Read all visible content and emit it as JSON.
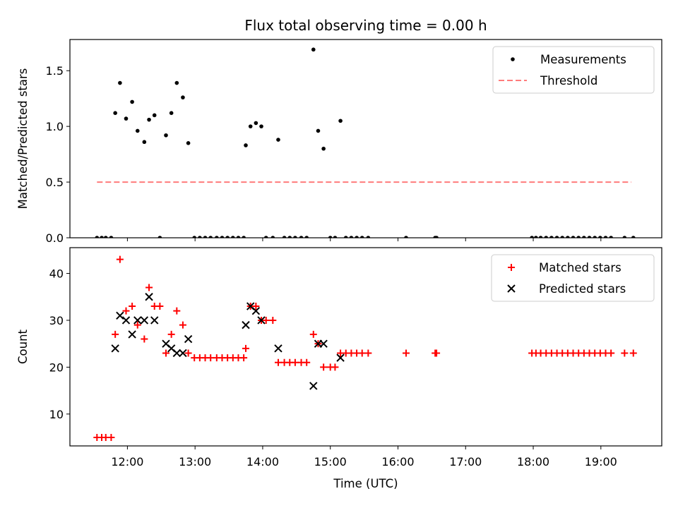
{
  "chart_data": [
    {
      "type": "scatter",
      "title": "Flux total observing time = 0.00 h",
      "xlabel": "",
      "ylabel": "Matched/Predicted stars",
      "ylim": [
        0,
        1.78
      ],
      "xlim": [
        11.15,
        19.9
      ],
      "xtick_values": [
        12,
        13,
        14,
        15,
        16,
        17,
        18,
        19
      ],
      "yticks": [
        {
          "value": 0.0,
          "label": "0.0"
        },
        {
          "value": 0.5,
          "label": "0.5"
        },
        {
          "value": 1.0,
          "label": "1.0"
        },
        {
          "value": 1.5,
          "label": "1.5"
        }
      ],
      "legend_position": "top-right",
      "series": [
        {
          "name": "Measurements",
          "kind": "dot",
          "color": "#000000",
          "points": [
            [
              11.55,
              0
            ],
            [
              11.62,
              0
            ],
            [
              11.68,
              0
            ],
            [
              11.76,
              0
            ],
            [
              11.82,
              1.12
            ],
            [
              11.89,
              1.39
            ],
            [
              11.98,
              1.07
            ],
            [
              12.07,
              1.22
            ],
            [
              12.15,
              0.96
            ],
            [
              12.25,
              0.86
            ],
            [
              12.32,
              1.06
            ],
            [
              12.4,
              1.1
            ],
            [
              12.57,
              0.92
            ],
            [
              12.65,
              1.12
            ],
            [
              12.73,
              1.39
            ],
            [
              12.82,
              1.26
            ],
            [
              12.9,
              0.85
            ],
            [
              12.48,
              0
            ],
            [
              12.99,
              0
            ],
            [
              13.07,
              0
            ],
            [
              13.15,
              0
            ],
            [
              13.23,
              0
            ],
            [
              13.32,
              0
            ],
            [
              13.4,
              0
            ],
            [
              13.48,
              0
            ],
            [
              13.56,
              0
            ],
            [
              13.64,
              0
            ],
            [
              13.72,
              0
            ],
            [
              13.75,
              0.83
            ],
            [
              13.82,
              1.0
            ],
            [
              13.9,
              1.03
            ],
            [
              13.98,
              1.0
            ],
            [
              14.05,
              0
            ],
            [
              14.15,
              0
            ],
            [
              14.32,
              0
            ],
            [
              14.4,
              0
            ],
            [
              14.48,
              0
            ],
            [
              14.57,
              0
            ],
            [
              14.65,
              0
            ],
            [
              14.23,
              0.88
            ],
            [
              14.75,
              1.69
            ],
            [
              14.82,
              0.96
            ],
            [
              14.9,
              0.8
            ],
            [
              15.15,
              1.05
            ],
            [
              15.0,
              0
            ],
            [
              15.07,
              0
            ],
            [
              15.23,
              0
            ],
            [
              15.31,
              0
            ],
            [
              15.39,
              0
            ],
            [
              15.47,
              0
            ],
            [
              15.56,
              0
            ],
            [
              16.12,
              0
            ],
            [
              16.55,
              0
            ],
            [
              16.57,
              0
            ],
            [
              17.98,
              0
            ],
            [
              18.04,
              0
            ],
            [
              18.11,
              0
            ],
            [
              18.19,
              0
            ],
            [
              18.27,
              0
            ],
            [
              18.35,
              0
            ],
            [
              18.43,
              0
            ],
            [
              18.51,
              0
            ],
            [
              18.59,
              0
            ],
            [
              18.67,
              0
            ],
            [
              18.75,
              0
            ],
            [
              18.83,
              0
            ],
            [
              18.91,
              0
            ],
            [
              18.99,
              0
            ],
            [
              19.07,
              0
            ],
            [
              19.15,
              0
            ],
            [
              19.35,
              0
            ],
            [
              19.48,
              0
            ]
          ]
        },
        {
          "name": "Threshold",
          "kind": "dashed-line",
          "color": "#ff7b7b",
          "points": [
            [
              11.55,
              0.5
            ],
            [
              19.45,
              0.5
            ]
          ]
        }
      ]
    },
    {
      "type": "scatter",
      "title": "",
      "xlabel": "Time (UTC)",
      "ylabel": "Count",
      "ylim": [
        3.2,
        45.5
      ],
      "xlim": [
        11.15,
        19.9
      ],
      "xticks": [
        {
          "value": 12,
          "label": "12:00"
        },
        {
          "value": 13,
          "label": "13:00"
        },
        {
          "value": 14,
          "label": "14:00"
        },
        {
          "value": 15,
          "label": "15:00"
        },
        {
          "value": 16,
          "label": "16:00"
        },
        {
          "value": 17,
          "label": "17:00"
        },
        {
          "value": 18,
          "label": "18:00"
        },
        {
          "value": 19,
          "label": "19:00"
        }
      ],
      "yticks": [
        {
          "value": 10,
          "label": "10"
        },
        {
          "value": 20,
          "label": "20"
        },
        {
          "value": 30,
          "label": "30"
        },
        {
          "value": 40,
          "label": "40"
        }
      ],
      "legend_position": "top-right",
      "series": [
        {
          "name": "Matched stars",
          "kind": "plus",
          "color": "#ff0000",
          "points": [
            [
              11.55,
              5
            ],
            [
              11.62,
              5
            ],
            [
              11.68,
              5
            ],
            [
              11.76,
              5
            ],
            [
              11.82,
              27
            ],
            [
              11.89,
              43
            ],
            [
              11.98,
              32
            ],
            [
              12.07,
              33
            ],
            [
              12.15,
              29
            ],
            [
              12.25,
              26
            ],
            [
              12.32,
              37
            ],
            [
              12.4,
              33
            ],
            [
              12.48,
              33
            ],
            [
              12.57,
              23
            ],
            [
              12.65,
              27
            ],
            [
              12.73,
              32
            ],
            [
              12.82,
              29
            ],
            [
              12.9,
              23
            ],
            [
              12.99,
              22
            ],
            [
              13.07,
              22
            ],
            [
              13.15,
              22
            ],
            [
              13.23,
              22
            ],
            [
              13.32,
              22
            ],
            [
              13.4,
              22
            ],
            [
              13.48,
              22
            ],
            [
              13.56,
              22
            ],
            [
              13.64,
              22
            ],
            [
              13.72,
              22
            ],
            [
              13.75,
              24
            ],
            [
              13.82,
              33
            ],
            [
              13.9,
              33
            ],
            [
              13.98,
              30
            ],
            [
              14.05,
              30
            ],
            [
              14.15,
              30
            ],
            [
              14.23,
              21
            ],
            [
              14.32,
              21
            ],
            [
              14.4,
              21
            ],
            [
              14.48,
              21
            ],
            [
              14.57,
              21
            ],
            [
              14.65,
              21
            ],
            [
              14.75,
              27
            ],
            [
              14.82,
              25
            ],
            [
              14.9,
              20
            ],
            [
              15.0,
              20
            ],
            [
              15.07,
              20
            ],
            [
              15.15,
              23
            ],
            [
              15.23,
              23
            ],
            [
              15.31,
              23
            ],
            [
              15.39,
              23
            ],
            [
              15.47,
              23
            ],
            [
              15.56,
              23
            ],
            [
              16.12,
              23
            ],
            [
              16.55,
              23
            ],
            [
              16.57,
              23
            ],
            [
              17.98,
              23
            ],
            [
              18.04,
              23
            ],
            [
              18.11,
              23
            ],
            [
              18.19,
              23
            ],
            [
              18.27,
              23
            ],
            [
              18.35,
              23
            ],
            [
              18.43,
              23
            ],
            [
              18.51,
              23
            ],
            [
              18.59,
              23
            ],
            [
              18.67,
              23
            ],
            [
              18.75,
              23
            ],
            [
              18.83,
              23
            ],
            [
              18.91,
              23
            ],
            [
              18.99,
              23
            ],
            [
              19.07,
              23
            ],
            [
              19.15,
              23
            ],
            [
              19.35,
              23
            ],
            [
              19.48,
              23
            ]
          ]
        },
        {
          "name": "Predicted stars",
          "kind": "x",
          "color": "#000000",
          "points": [
            [
              11.82,
              24
            ],
            [
              11.89,
              31
            ],
            [
              11.98,
              30
            ],
            [
              12.07,
              27
            ],
            [
              12.15,
              30
            ],
            [
              12.25,
              30
            ],
            [
              12.32,
              35
            ],
            [
              12.4,
              30
            ],
            [
              12.57,
              25
            ],
            [
              12.65,
              24
            ],
            [
              12.73,
              23
            ],
            [
              12.82,
              23
            ],
            [
              12.9,
              26
            ],
            [
              13.75,
              29
            ],
            [
              13.82,
              33
            ],
            [
              13.9,
              32
            ],
            [
              13.98,
              30
            ],
            [
              14.23,
              24
            ],
            [
              14.75,
              16
            ],
            [
              14.82,
              25
            ],
            [
              14.9,
              25
            ],
            [
              15.15,
              22
            ]
          ]
        }
      ]
    }
  ]
}
